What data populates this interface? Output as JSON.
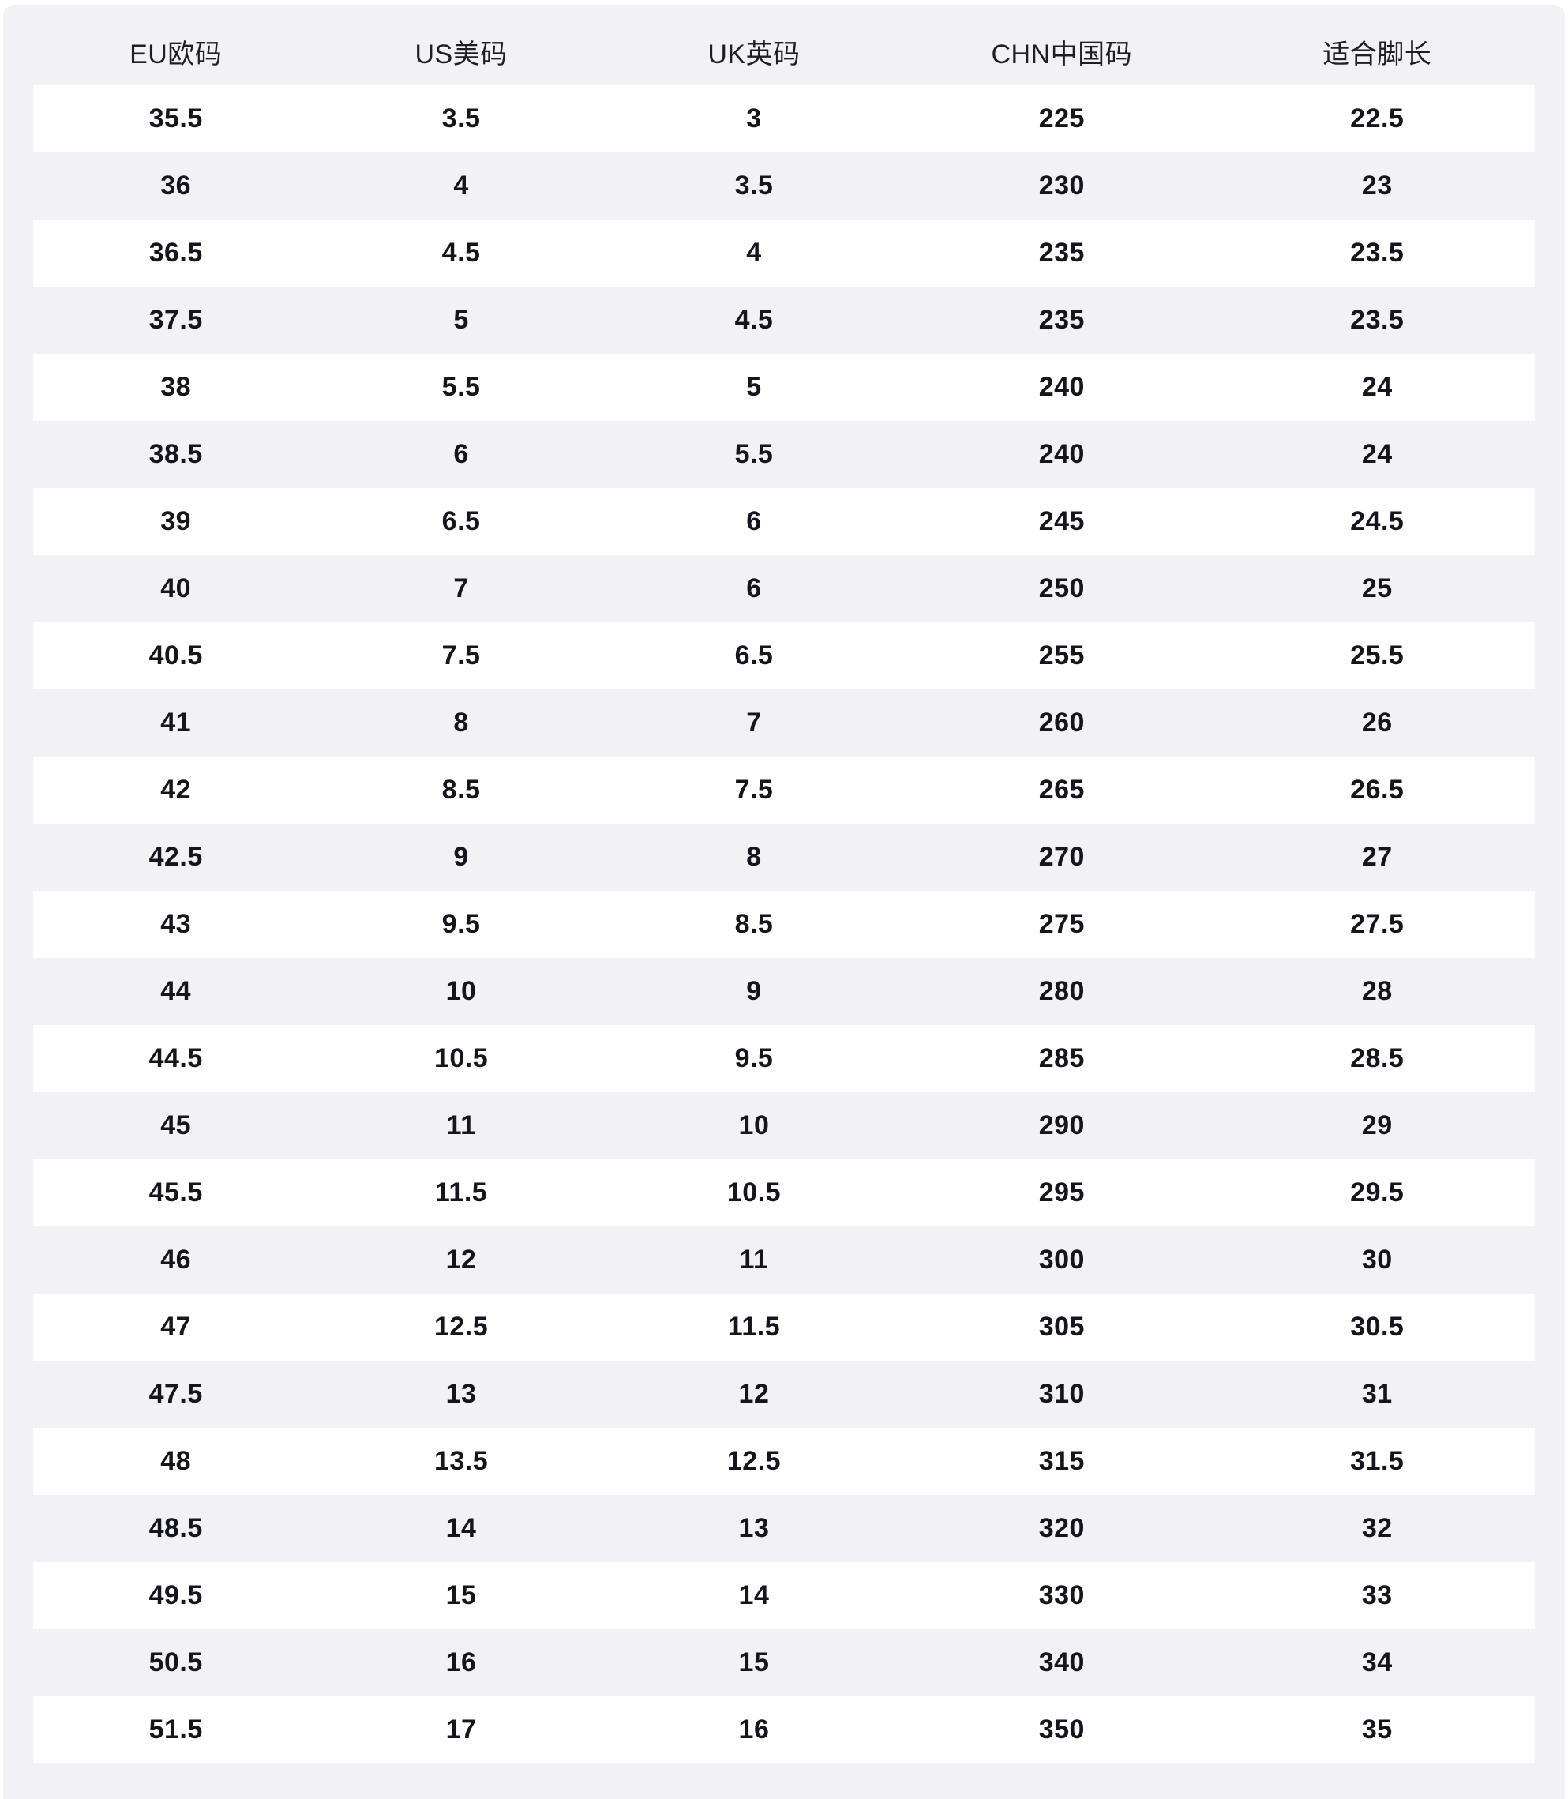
{
  "chart_data": {
    "type": "table",
    "title": "",
    "columns": [
      "EU欧码",
      "US美码",
      "UK英码",
      "CHN中国码",
      "适合脚长"
    ],
    "rows": [
      [
        "35.5",
        "3.5",
        "3",
        "225",
        "22.5"
      ],
      [
        "36",
        "4",
        "3.5",
        "230",
        "23"
      ],
      [
        "36.5",
        "4.5",
        "4",
        "235",
        "23.5"
      ],
      [
        "37.5",
        "5",
        "4.5",
        "235",
        "23.5"
      ],
      [
        "38",
        "5.5",
        "5",
        "240",
        "24"
      ],
      [
        "38.5",
        "6",
        "5.5",
        "240",
        "24"
      ],
      [
        "39",
        "6.5",
        "6",
        "245",
        "24.5"
      ],
      [
        "40",
        "7",
        "6",
        "250",
        "25"
      ],
      [
        "40.5",
        "7.5",
        "6.5",
        "255",
        "25.5"
      ],
      [
        "41",
        "8",
        "7",
        "260",
        "26"
      ],
      [
        "42",
        "8.5",
        "7.5",
        "265",
        "26.5"
      ],
      [
        "42.5",
        "9",
        "8",
        "270",
        "27"
      ],
      [
        "43",
        "9.5",
        "8.5",
        "275",
        "27.5"
      ],
      [
        "44",
        "10",
        "9",
        "280",
        "28"
      ],
      [
        "44.5",
        "10.5",
        "9.5",
        "285",
        "28.5"
      ],
      [
        "45",
        "11",
        "10",
        "290",
        "29"
      ],
      [
        "45.5",
        "11.5",
        "10.5",
        "295",
        "29.5"
      ],
      [
        "46",
        "12",
        "11",
        "300",
        "30"
      ],
      [
        "47",
        "12.5",
        "11.5",
        "305",
        "30.5"
      ],
      [
        "47.5",
        "13",
        "12",
        "310",
        "31"
      ],
      [
        "48",
        "13.5",
        "12.5",
        "315",
        "31.5"
      ],
      [
        "48.5",
        "14",
        "13",
        "320",
        "32"
      ],
      [
        "49.5",
        "15",
        "14",
        "330",
        "33"
      ],
      [
        "50.5",
        "16",
        "15",
        "340",
        "34"
      ],
      [
        "51.5",
        "17",
        "16",
        "350",
        "35"
      ]
    ],
    "layout": {
      "zebra_striping": true,
      "first_data_row_background": "white",
      "grid": false,
      "legend": "none"
    }
  },
  "colors": {
    "page_background": "#ffffff",
    "card_background": "#f2f2f6",
    "row_stripe": "#ffffff",
    "header_text": "#1e1e26",
    "cell_text": "#15151d"
  }
}
